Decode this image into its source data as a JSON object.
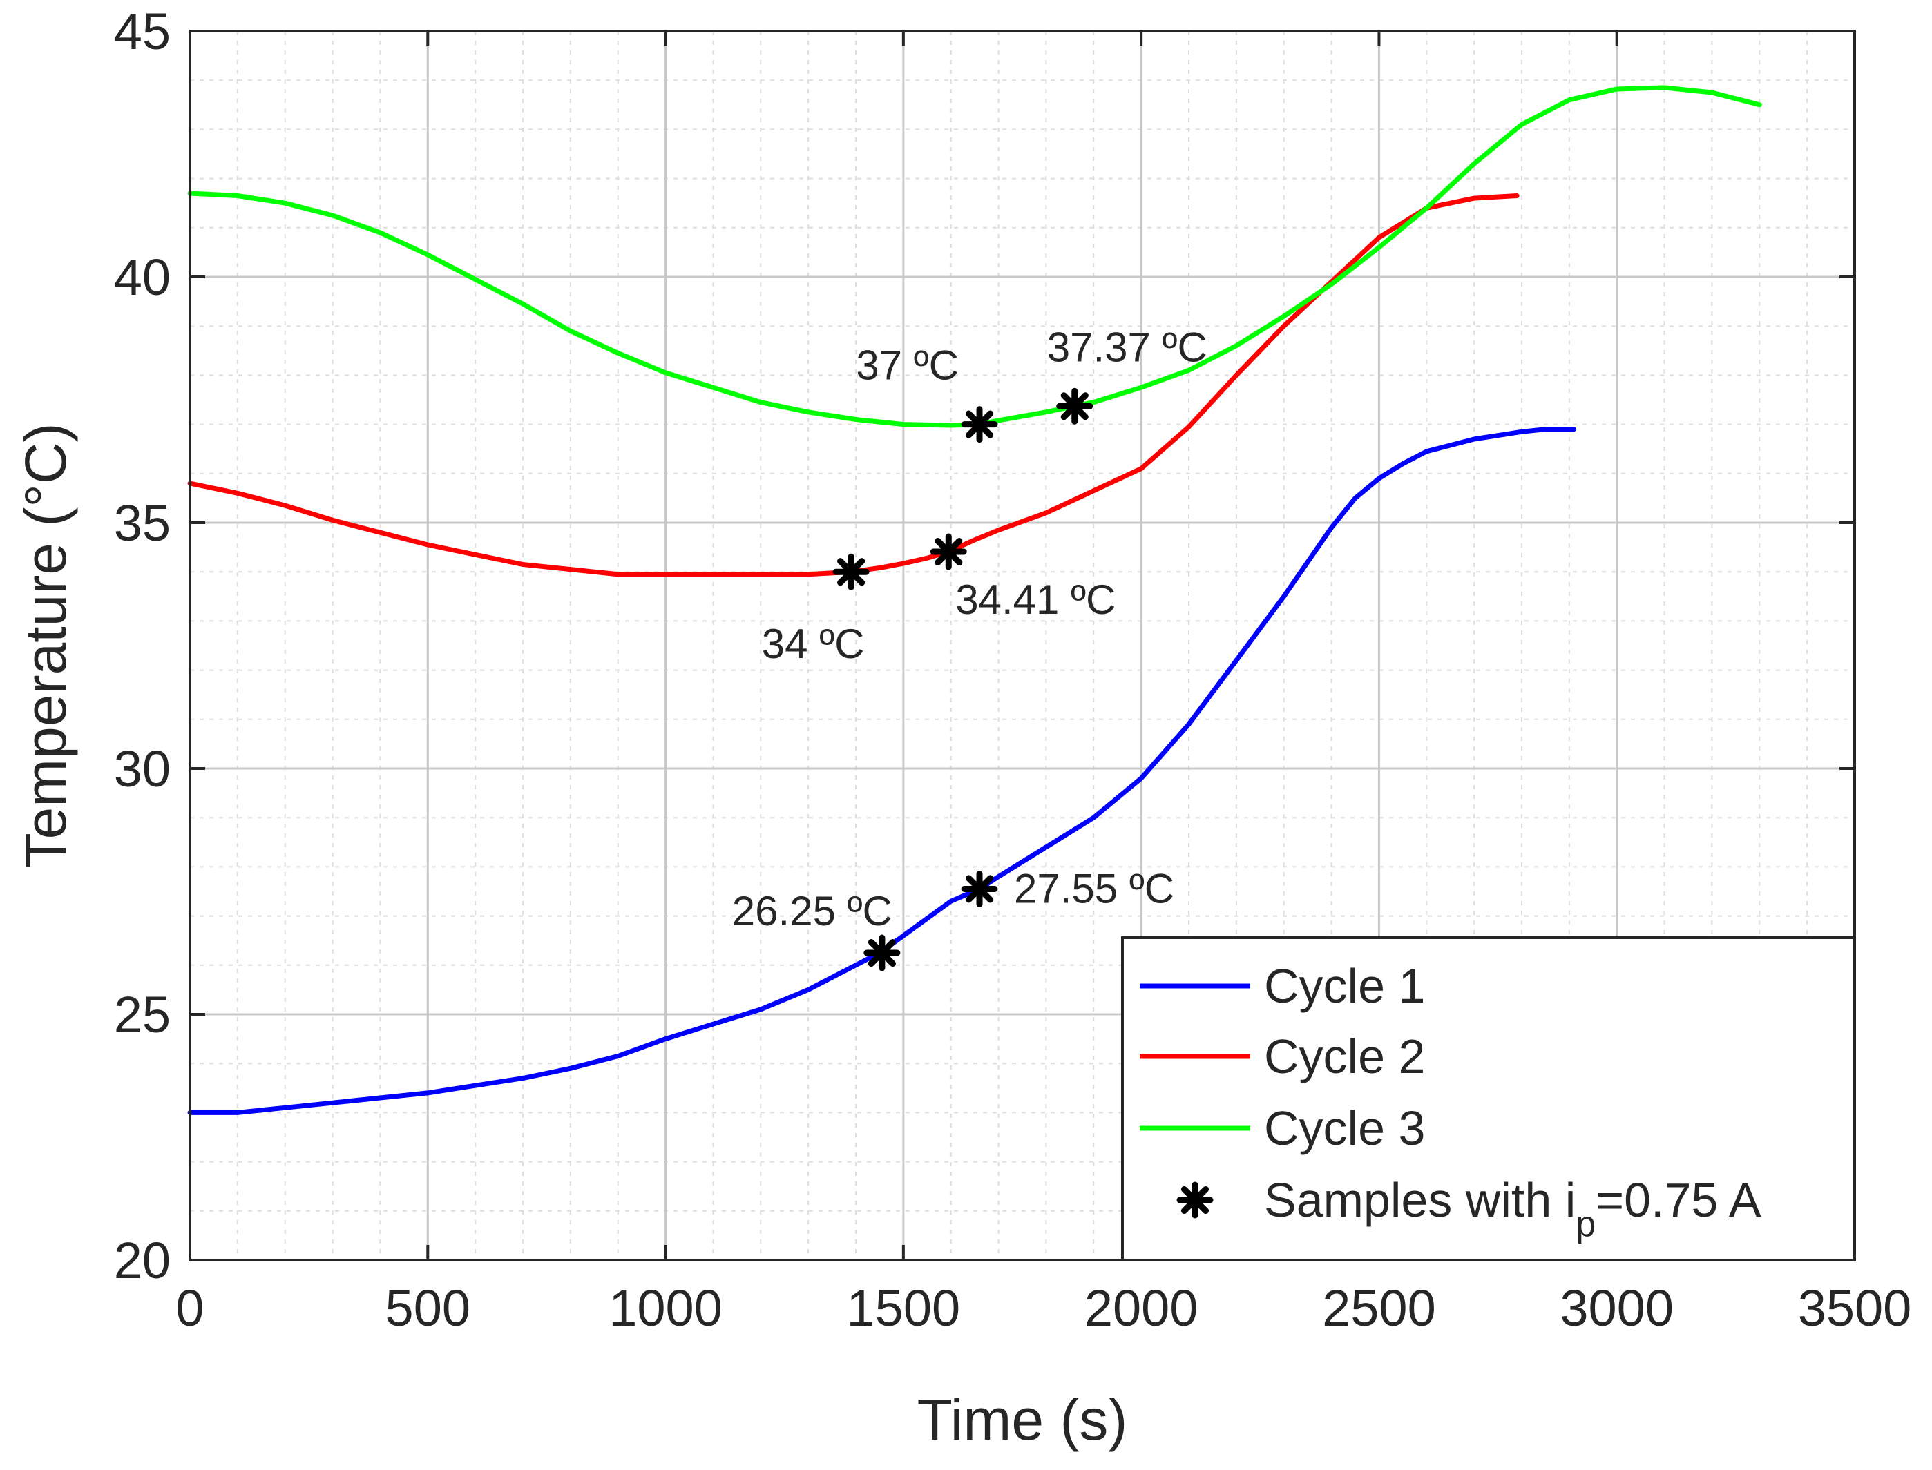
{
  "chart_data": {
    "type": "line",
    "title": "",
    "xlabel": "Time (s)",
    "ylabel": "Temperature (°C)",
    "xlim": [
      0,
      3500
    ],
    "ylim": [
      20,
      45
    ],
    "x_ticks": [
      0,
      500,
      1000,
      1500,
      2000,
      2500,
      3000,
      3500
    ],
    "y_ticks": [
      20,
      25,
      30,
      35,
      40,
      45
    ],
    "x_tick_labels": [
      "0",
      "500",
      "1000",
      "1500",
      "2000",
      "2500",
      "3000",
      "3500"
    ],
    "y_tick_labels": [
      "20",
      "25",
      "30",
      "35",
      "40",
      "45"
    ],
    "grid": true,
    "minor_grid": true,
    "legend_position": "bottom-right",
    "series": [
      {
        "name": "Cycle 1",
        "color": "#0000ff",
        "x": [
          0,
          100,
          200,
          300,
          400,
          500,
          600,
          700,
          800,
          900,
          1000,
          1100,
          1200,
          1300,
          1400,
          1450,
          1500,
          1600,
          1660,
          1700,
          1800,
          1900,
          2000,
          2100,
          2200,
          2300,
          2400,
          2450,
          2500,
          2550,
          2600,
          2700,
          2800,
          2850,
          2910
        ],
        "y": [
          23.0,
          23.0,
          23.1,
          23.2,
          23.3,
          23.4,
          23.55,
          23.7,
          23.9,
          24.15,
          24.5,
          24.8,
          25.1,
          25.5,
          26.0,
          26.25,
          26.6,
          27.3,
          27.55,
          27.8,
          28.4,
          29.0,
          29.8,
          30.9,
          32.2,
          33.5,
          34.9,
          35.5,
          35.9,
          36.2,
          36.45,
          36.7,
          36.85,
          36.9,
          36.9
        ]
      },
      {
        "name": "Cycle 2",
        "color": "#ff0000",
        "x": [
          0,
          100,
          200,
          300,
          400,
          500,
          600,
          700,
          800,
          900,
          1000,
          1100,
          1200,
          1300,
          1390,
          1450,
          1500,
          1550,
          1595,
          1650,
          1700,
          1800,
          1900,
          2000,
          2100,
          2200,
          2300,
          2400,
          2500,
          2600,
          2700,
          2790
        ],
        "y": [
          35.8,
          35.6,
          35.35,
          35.05,
          34.8,
          34.55,
          34.35,
          34.15,
          34.05,
          33.95,
          33.95,
          33.95,
          33.95,
          33.95,
          34.0,
          34.08,
          34.17,
          34.28,
          34.41,
          34.65,
          34.85,
          35.2,
          35.65,
          36.1,
          36.95,
          38.0,
          39.0,
          39.9,
          40.8,
          41.4,
          41.6,
          41.65
        ]
      },
      {
        "name": "Cycle 3",
        "color": "#00ff00",
        "x": [
          0,
          100,
          200,
          300,
          400,
          500,
          600,
          700,
          800,
          900,
          1000,
          1100,
          1200,
          1300,
          1400,
          1500,
          1600,
          1660,
          1700,
          1800,
          1860,
          1900,
          2000,
          2100,
          2200,
          2300,
          2400,
          2500,
          2600,
          2700,
          2800,
          2900,
          3000,
          3100,
          3200,
          3300
        ],
        "y": [
          41.7,
          41.65,
          41.5,
          41.25,
          40.9,
          40.45,
          39.95,
          39.45,
          38.9,
          38.45,
          38.05,
          37.75,
          37.45,
          37.25,
          37.1,
          37.0,
          36.98,
          37.0,
          37.08,
          37.25,
          37.37,
          37.45,
          37.75,
          38.1,
          38.6,
          39.2,
          39.85,
          40.6,
          41.4,
          42.3,
          43.1,
          43.6,
          43.82,
          43.85,
          43.75,
          43.5
        ]
      }
    ],
    "markers": {
      "name_prefix": "Samples with i",
      "name_subscript": "p",
      "name_suffix": "=0.75 A",
      "symbol": "asterisk",
      "color": "#000000",
      "points": [
        {
          "x": 1455,
          "y": 26.25,
          "label": "26.25 ºC",
          "anchor": "end",
          "dx": 15,
          "dy": -40
        },
        {
          "x": 1660,
          "y": 27.55,
          "label": "27.55 ºC",
          "anchor": "start",
          "dx": 50,
          "dy": 20
        },
        {
          "x": 1390,
          "y": 34.0,
          "label": "34 ºC",
          "anchor": "middle",
          "dx": -55,
          "dy": 125
        },
        {
          "x": 1595,
          "y": 34.41,
          "label": "34.41 ºC",
          "anchor": "start",
          "dx": 10,
          "dy": 90
        },
        {
          "x": 1660,
          "y": 37.0,
          "label": "37 ºC",
          "anchor": "end",
          "dx": -30,
          "dy": -65
        },
        {
          "x": 1860,
          "y": 37.37,
          "label": "37.37 ºC",
          "anchor": "start",
          "dx": -40,
          "dy": -65
        }
      ]
    }
  }
}
